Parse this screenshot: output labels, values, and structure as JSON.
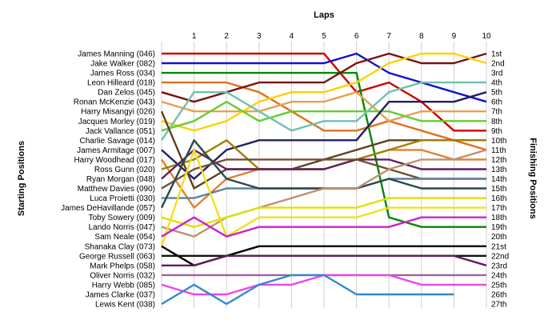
{
  "chart_data": {
    "type": "line",
    "title": "Laps",
    "ylabel_left": "Starting Positions",
    "ylabel_right": "Finishing Positions",
    "x": [
      1,
      2,
      3,
      4,
      5,
      6,
      7,
      8,
      9,
      10
    ],
    "ylim": [
      1,
      27
    ],
    "y_inverted": true,
    "grid": "vertical",
    "drivers": [
      "James Manning (046)",
      "Jake Walker (082)",
      "James Ross (034)",
      "Leon Hilleard (018)",
      "Dan Zelos (045)",
      "Ronan McKenzie (043)",
      "Harry Misangyi (026)",
      "Jacques Morley (019)",
      "Jack Vallance (051)",
      "Charlie Savage (014)",
      "James Armitage (007)",
      "Harry Woodhead (017)",
      "Ross Gunn (020)",
      "Ryan Morgan (048)",
      "Matthew Davies (090)",
      "Luca Proietti (030)",
      "James DeHavillande (057)",
      "Toby Sowery (009)",
      "Lando Norris (047)",
      "Sam Neale (054)",
      "Shanaka Clay (073)",
      "George Russell (063)",
      "Mark Phelps (058)",
      "Oliver Norris (032)",
      "Harry Webb (085)",
      "James Clarke (037)",
      "Lewis Kent (038)"
    ],
    "finishing_labels": [
      "1st",
      "2nd",
      "3rd",
      "4th",
      "5th",
      "6th",
      "7th",
      "8th",
      "9th",
      "10th",
      "11th",
      "12th",
      "13th",
      "14th",
      "15th",
      "16th",
      "17th",
      "18th",
      "19th",
      "20th",
      "21st",
      "22nd",
      "23rd",
      "24th",
      "25th",
      "26th",
      "27th"
    ],
    "series": [
      {
        "color": "#cc0000",
        "start": 1,
        "values": [
          1,
          1,
          1,
          1,
          1,
          5,
          4,
          6,
          9,
          9
        ]
      },
      {
        "color": "#1111cc",
        "start": 2,
        "values": [
          2,
          2,
          2,
          2,
          2,
          1,
          3,
          4,
          5,
          6
        ]
      },
      {
        "color": "#008800",
        "start": 3,
        "values": [
          3,
          3,
          3,
          3,
          3,
          3,
          18,
          19,
          19,
          19
        ]
      },
      {
        "color": "#e07020",
        "start": 4,
        "values": [
          4,
          4,
          5,
          7,
          9,
          9,
          8,
          9,
          10,
          11
        ]
      },
      {
        "color": "#7a1010",
        "start": 5,
        "values": [
          6,
          5,
          4,
          4,
          4,
          2,
          1,
          2,
          2,
          1
        ]
      },
      {
        "color": "#e8a050",
        "start": 6,
        "values": [
          7,
          7,
          7,
          6,
          6,
          5,
          8,
          7,
          7,
          7
        ]
      },
      {
        "color": "#ffd000",
        "start": 8,
        "values": [
          9,
          8,
          6,
          5,
          5,
          4,
          2,
          1,
          1,
          2
        ]
      },
      {
        "color": "#66cc33",
        "start": 9,
        "values": [
          8,
          6,
          8,
          7,
          7,
          7,
          7,
          8,
          8,
          8
        ]
      },
      {
        "color": "#70c0b0",
        "start": 10,
        "values": [
          5,
          5,
          7,
          9,
          8,
          8,
          5,
          4,
          4,
          4
        ]
      },
      {
        "color": "#202060",
        "start": 11,
        "values": [
          14,
          11,
          10,
          10,
          10,
          10,
          6,
          6,
          6,
          5
        ]
      },
      {
        "color": "#604020",
        "start": 7,
        "values": [
          15,
          13,
          13,
          13,
          12,
          11,
          10,
          10,
          10,
          10
        ]
      },
      {
        "color": "#e08030",
        "start": 12,
        "values": [
          17,
          14,
          13,
          13,
          13,
          12,
          11,
          11,
          12,
          12
        ]
      },
      {
        "color": "#a08000",
        "start": 13,
        "values": [
          12,
          10,
          13,
          13,
          13,
          12,
          11,
          10,
          10,
          10
        ]
      },
      {
        "color": "#602060",
        "start": 14,
        "values": [
          11,
          13,
          13,
          13,
          13,
          12,
          12,
          13,
          13,
          13
        ]
      },
      {
        "color": "#705030",
        "start": 15,
        "values": [
          13,
          12,
          12,
          12,
          12,
          12,
          13,
          14,
          14,
          14
        ]
      },
      {
        "color": "#6080a0",
        "start": 16,
        "values": [
          16,
          15,
          15,
          15,
          15,
          15,
          14,
          14,
          14,
          14
        ]
      },
      {
        "color": "#2a4a4a",
        "start": 17,
        "values": [
          10,
          14,
          15,
          15,
          15,
          15,
          14,
          15,
          15,
          15
        ]
      },
      {
        "color": "#c09070",
        "start": 19,
        "values": [
          20,
          18,
          17,
          16,
          15,
          15,
          13,
          12,
          12,
          11
        ]
      },
      {
        "color": "#e0e000",
        "start": 18,
        "values": [
          19,
          18,
          17,
          17,
          17,
          17,
          16,
          16,
          16,
          16
        ]
      },
      {
        "color": "#f0e020",
        "start": 21,
        "values": [
          11,
          20,
          18,
          18,
          18,
          18,
          17,
          17,
          17,
          17
        ]
      },
      {
        "color": "#cc22cc",
        "start": 20,
        "values": [
          18,
          20,
          19,
          19,
          19,
          19,
          19,
          18,
          18,
          18
        ]
      },
      {
        "color": "#000000",
        "start": 21,
        "values": [
          23,
          22,
          21,
          21,
          21,
          21,
          21,
          21,
          21,
          21
        ]
      },
      {
        "color": "#101010",
        "start": 22,
        "values": [
          22,
          22,
          22,
          22,
          22,
          22,
          22,
          22,
          22,
          22
        ]
      },
      {
        "color": "#602060",
        "start": 23,
        "values": [
          23,
          22,
          22,
          22,
          22,
          22,
          22,
          22,
          22,
          23
        ]
      },
      {
        "color": "#a060a0",
        "start": 24,
        "values": [
          24,
          24,
          24,
          24,
          24,
          24,
          24,
          24,
          24,
          24
        ]
      },
      {
        "color": "#ee44ee",
        "start": 25,
        "values": [
          26,
          26,
          25,
          25,
          24,
          24,
          24,
          25,
          25,
          25
        ]
      },
      {
        "color": "#3388cc",
        "start": 27,
        "values": [
          25,
          27,
          25,
          24,
          24,
          26,
          26,
          26,
          26,
          null
        ]
      }
    ]
  }
}
